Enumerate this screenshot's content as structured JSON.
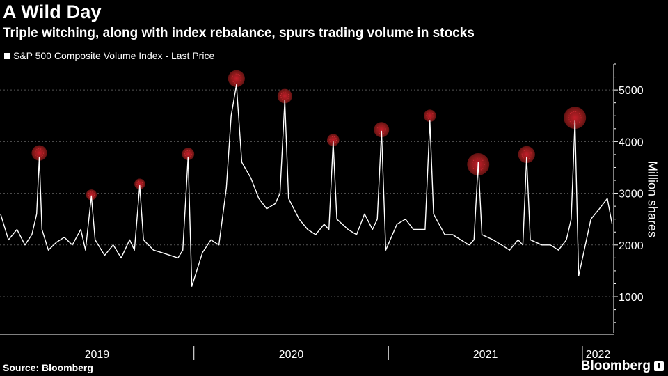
{
  "chart_data": {
    "type": "line",
    "title": "A Wild Day",
    "subtitle": "Triple witching, along with index rebalance, spurs trading volume in stocks",
    "ylabel": "Million shares",
    "source": "Source: Bloomberg",
    "brand": "Bloomberg",
    "ylim": [
      300,
      5500
    ],
    "yticks": [
      1000,
      2000,
      3000,
      4000,
      5000
    ],
    "xlim": [
      "2018-12-31",
      "2022-02-28"
    ],
    "x_tick_labels": [
      "2019",
      "2020",
      "2021",
      "2022"
    ],
    "grid": true,
    "legend_position": "top-left",
    "colors": {
      "line": "#ffffff",
      "highlight": "#8b1a1a",
      "highlight_core": "#c41e2a",
      "grid": "#555555"
    },
    "series": [
      {
        "name": "S&P 500 Composite Volume Index - Last Price",
        "x": [
          "2019-01-01",
          "2019-01-16",
          "2019-02-01",
          "2019-02-16",
          "2019-03-01",
          "2019-03-10",
          "2019-03-15",
          "2019-03-20",
          "2019-04-01",
          "2019-04-16",
          "2019-05-01",
          "2019-05-16",
          "2019-06-01",
          "2019-06-10",
          "2019-06-21",
          "2019-06-28",
          "2019-07-16",
          "2019-08-01",
          "2019-08-16",
          "2019-09-01",
          "2019-09-10",
          "2019-09-20",
          "2019-09-27",
          "2019-10-16",
          "2019-11-01",
          "2019-11-16",
          "2019-12-01",
          "2019-12-10",
          "2019-12-20",
          "2019-12-27",
          "2020-01-16",
          "2020-02-01",
          "2020-02-16",
          "2020-03-01",
          "2020-03-10",
          "2020-03-20",
          "2020-03-30",
          "2020-04-16",
          "2020-05-01",
          "2020-05-16",
          "2020-06-01",
          "2020-06-10",
          "2020-06-19",
          "2020-06-26",
          "2020-07-16",
          "2020-08-01",
          "2020-08-16",
          "2020-09-01",
          "2020-09-10",
          "2020-09-18",
          "2020-09-25",
          "2020-10-16",
          "2020-11-01",
          "2020-11-16",
          "2020-12-01",
          "2020-12-10",
          "2020-12-18",
          "2020-12-26",
          "2021-01-16",
          "2021-02-01",
          "2021-02-16",
          "2021-03-01",
          "2021-03-10",
          "2021-03-19",
          "2021-03-26",
          "2021-04-16",
          "2021-05-01",
          "2021-05-16",
          "2021-06-01",
          "2021-06-10",
          "2021-06-18",
          "2021-06-25",
          "2021-07-16",
          "2021-08-01",
          "2021-08-16",
          "2021-09-01",
          "2021-09-10",
          "2021-09-17",
          "2021-09-24",
          "2021-10-16",
          "2021-11-01",
          "2021-11-16",
          "2021-12-01",
          "2021-12-10",
          "2021-12-17",
          "2021-12-24",
          "2022-01-16",
          "2022-02-01",
          "2022-02-16",
          "2022-02-25"
        ],
        "values": [
          2600,
          2100,
          2300,
          2000,
          2200,
          2600,
          3700,
          2300,
          1900,
          2050,
          2150,
          2000,
          2300,
          1900,
          2950,
          2100,
          1800,
          2000,
          1750,
          2100,
          1900,
          3150,
          2100,
          1900,
          1850,
          1800,
          1750,
          1900,
          3700,
          1200,
          1850,
          2100,
          2000,
          3100,
          4500,
          5100,
          3600,
          3300,
          2900,
          2700,
          2800,
          3000,
          4800,
          2900,
          2500,
          2300,
          2200,
          2400,
          2300,
          4000,
          2500,
          2300,
          2200,
          2600,
          2300,
          2500,
          4200,
          1900,
          2400,
          2500,
          2300,
          2300,
          2300,
          4400,
          2600,
          2200,
          2200,
          2100,
          2000,
          2100,
          3600,
          2200,
          2100,
          2000,
          1900,
          2100,
          2000,
          3700,
          2100,
          2000,
          2000,
          1900,
          2100,
          2500,
          4400,
          1400,
          2500,
          2700,
          2900,
          2400
        ]
      }
    ],
    "highlights": [
      {
        "date": "2019-03-15",
        "value": 3780,
        "size": 1.0
      },
      {
        "date": "2019-06-21",
        "value": 2970,
        "size": 0.7
      },
      {
        "date": "2019-09-20",
        "value": 3180,
        "size": 0.7
      },
      {
        "date": "2019-12-20",
        "value": 3760,
        "size": 0.8
      },
      {
        "date": "2020-03-20",
        "value": 5220,
        "size": 1.1
      },
      {
        "date": "2020-06-19",
        "value": 4880,
        "size": 0.95
      },
      {
        "date": "2020-09-18",
        "value": 4030,
        "size": 0.8
      },
      {
        "date": "2020-12-18",
        "value": 4230,
        "size": 1.0
      },
      {
        "date": "2021-03-19",
        "value": 4500,
        "size": 0.8
      },
      {
        "date": "2021-06-18",
        "value": 3560,
        "size": 1.45
      },
      {
        "date": "2021-09-17",
        "value": 3750,
        "size": 1.1
      },
      {
        "date": "2021-12-17",
        "value": 4460,
        "size": 1.45
      }
    ]
  }
}
